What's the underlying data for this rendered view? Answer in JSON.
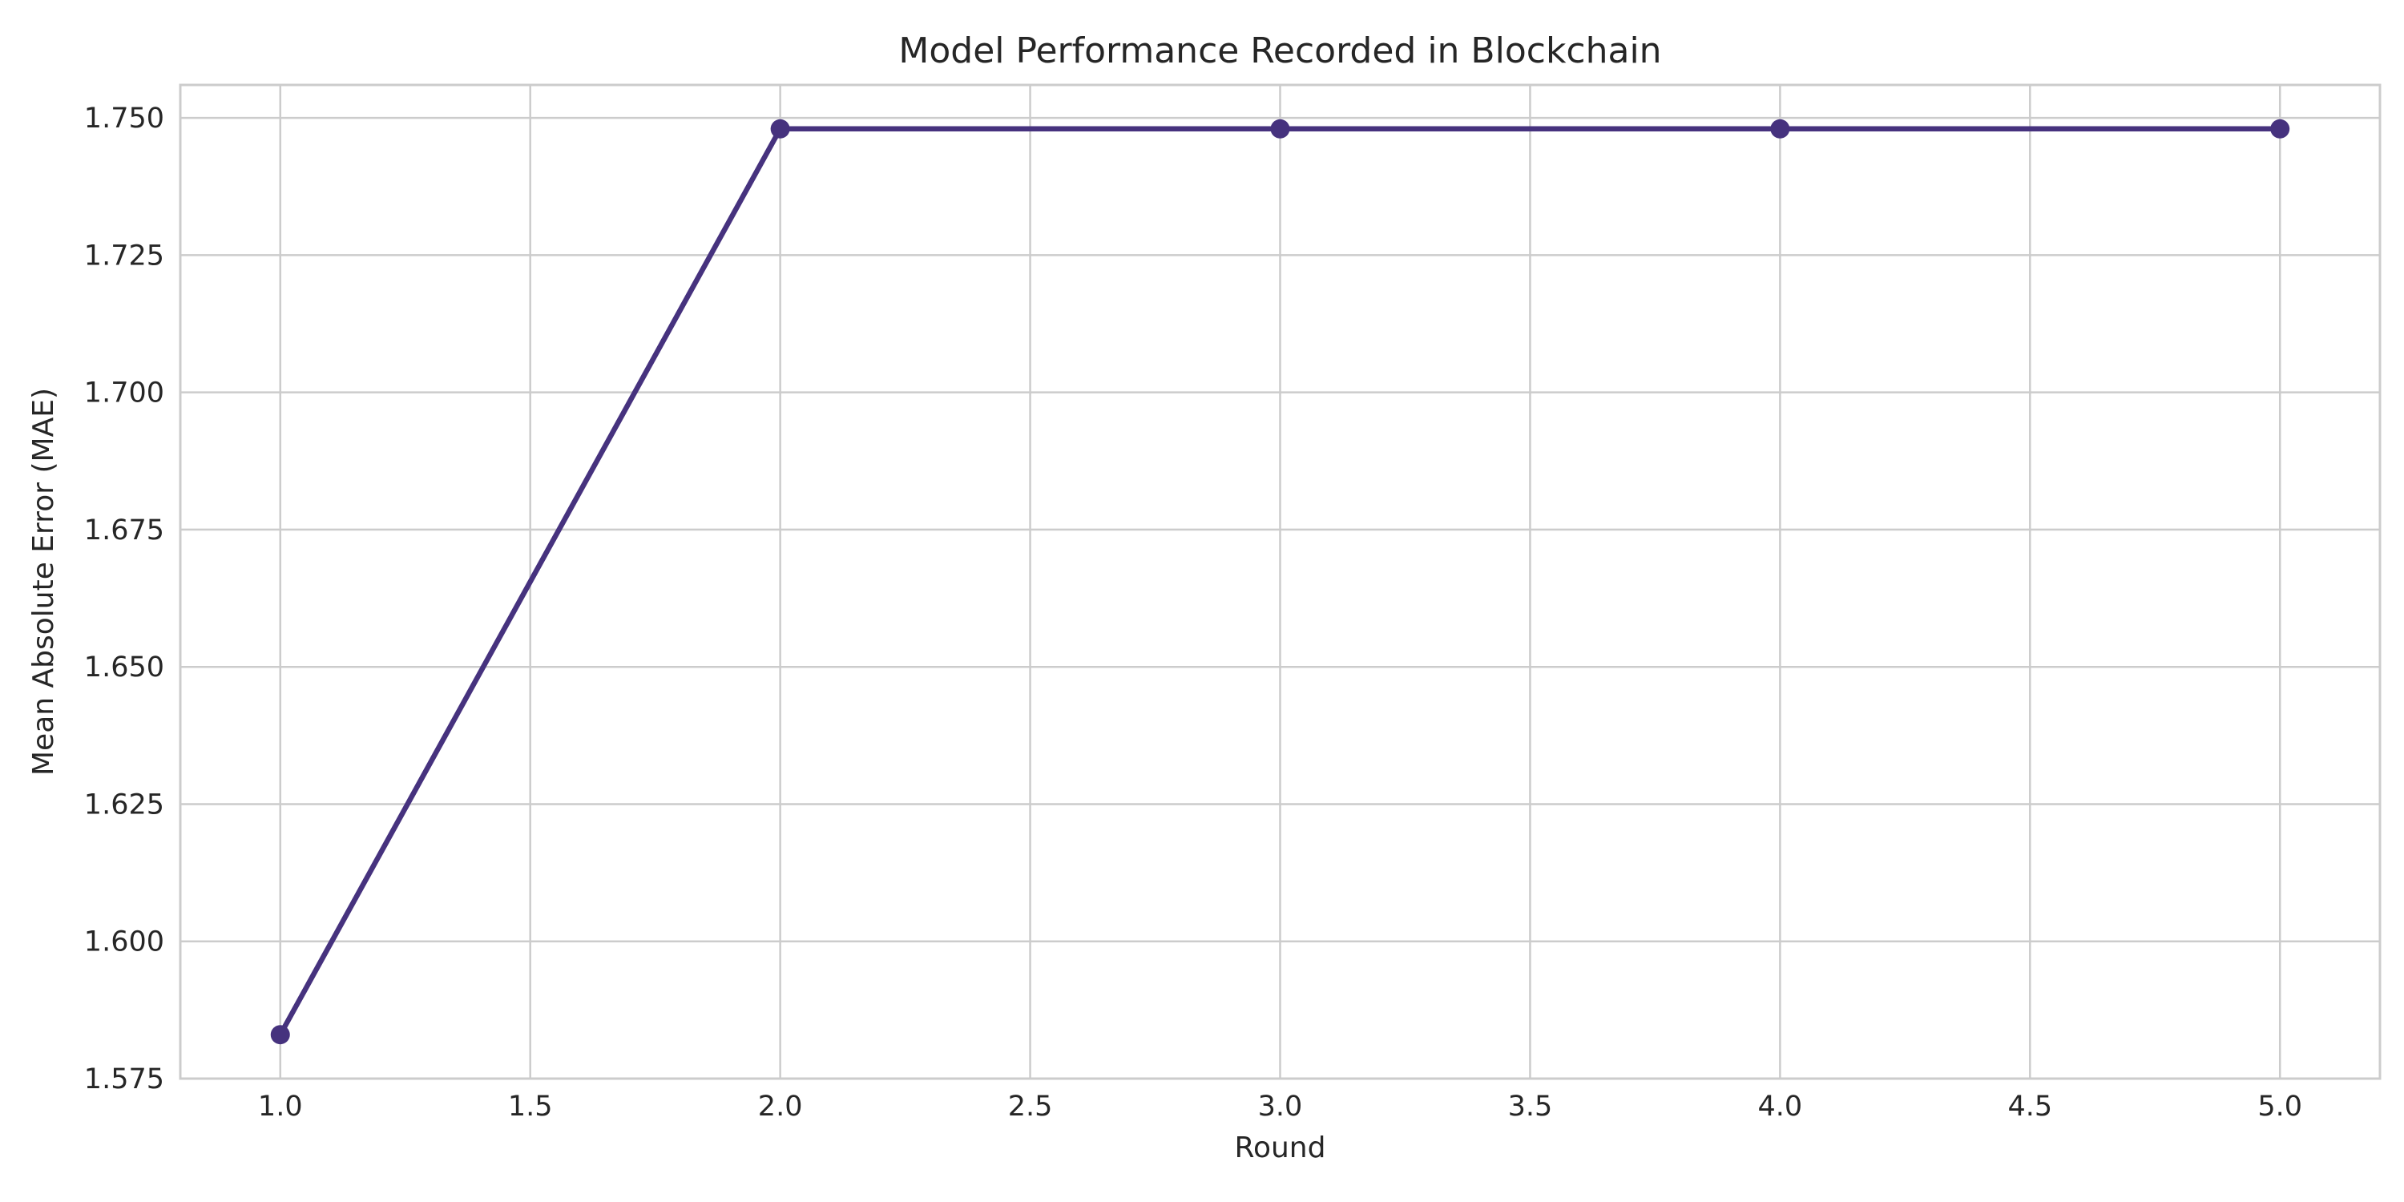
{
  "chart_data": {
    "type": "line",
    "title": "Model Performance Recorded in Blockchain",
    "xlabel": "Round",
    "ylabel": "Mean Absolute Error (MAE)",
    "xlim": [
      0.8,
      5.2
    ],
    "ylim": [
      1.575,
      1.756
    ],
    "xticks": [
      1.0,
      1.5,
      2.0,
      2.5,
      3.0,
      3.5,
      4.0,
      4.5,
      5.0
    ],
    "xtick_labels": [
      "1.0",
      "1.5",
      "2.0",
      "2.5",
      "3.0",
      "3.5",
      "4.0",
      "4.5",
      "5.0"
    ],
    "yticks": [
      1.575,
      1.6,
      1.625,
      1.65,
      1.675,
      1.7,
      1.725,
      1.75
    ],
    "ytick_labels": [
      "1.575",
      "1.600",
      "1.625",
      "1.650",
      "1.675",
      "1.700",
      "1.725",
      "1.750"
    ],
    "grid": true,
    "series": [
      {
        "color": "#46327e",
        "x": [
          1,
          2,
          3,
          4,
          5
        ],
        "y": [
          1.583,
          1.748,
          1.748,
          1.748,
          1.748
        ]
      }
    ]
  }
}
